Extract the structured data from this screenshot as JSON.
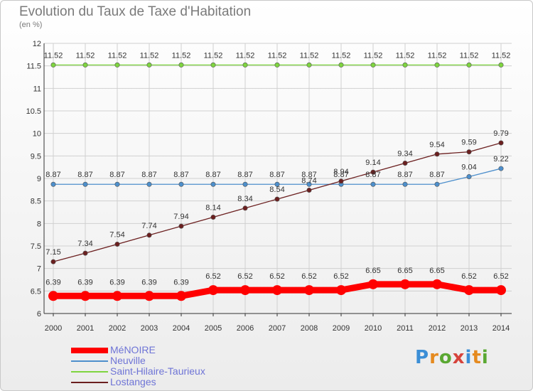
{
  "title": "Evolution du Taux de Taxe d'Habitation",
  "subtitle": "(en %)",
  "logo": {
    "text": "Proxiti",
    "colors": [
      "#3b8ed6",
      "#e58a1f",
      "#5aa832",
      "#d6433b",
      "#3b8ed6",
      "#e58a1f",
      "#5aa832"
    ]
  },
  "chart_data": {
    "type": "line",
    "title": "Evolution du Taux de Taxe d'Habitation",
    "ylabel": "(en %)",
    "xlabel": "",
    "x": [
      "2000",
      "2001",
      "2002",
      "2003",
      "2004",
      "2005",
      "2006",
      "2007",
      "2008",
      "2009",
      "2010",
      "2011",
      "2012",
      "2013",
      "2014"
    ],
    "ylim": [
      6,
      12
    ],
    "yticks": [
      "6",
      "6.5",
      "7",
      "7.5",
      "8",
      "8.5",
      "9",
      "9.5",
      "10",
      "10.5",
      "11",
      "11.5",
      "12"
    ],
    "grid": true,
    "legend_position": "bottom-left",
    "series": [
      {
        "name": "MéNOIRE",
        "color": "#ff0000",
        "values": [
          6.39,
          6.39,
          6.39,
          6.39,
          6.39,
          6.52,
          6.52,
          6.52,
          6.52,
          6.52,
          6.65,
          6.65,
          6.65,
          6.52,
          6.52
        ],
        "labels": [
          "6.39",
          "6.39",
          "6.39",
          "6.39",
          "6.39",
          "6.52",
          "6.52",
          "6.52",
          "6.52",
          "6.52",
          "6.65",
          "6.65",
          "6.65",
          "6.52",
          "6.52"
        ]
      },
      {
        "name": "Neuville",
        "color": "#4d8fcc",
        "values": [
          8.87,
          8.87,
          8.87,
          8.87,
          8.87,
          8.87,
          8.87,
          8.87,
          8.87,
          8.87,
          8.87,
          8.87,
          8.87,
          9.04,
          9.22
        ],
        "labels": [
          "8.87",
          "8.87",
          "8.87",
          "8.87",
          "8.87",
          "8.87",
          "8.87",
          "8.87",
          "8.87",
          "8.87",
          "8.87",
          "8.87",
          "8.87",
          "9.04",
          "9.22"
        ]
      },
      {
        "name": "Saint-Hilaire-Taurieux",
        "color": "#7ed53f",
        "values": [
          11.52,
          11.52,
          11.52,
          11.52,
          11.52,
          11.52,
          11.52,
          11.52,
          11.52,
          11.52,
          11.52,
          11.52,
          11.52,
          11.52,
          11.52
        ],
        "labels": [
          "11.52",
          "11.52",
          "11.52",
          "11.52",
          "11.52",
          "11.52",
          "11.52",
          "11.52",
          "11.52",
          "11.52",
          "11.52",
          "11.52",
          "11.52",
          "11.52",
          "11.52"
        ]
      },
      {
        "name": "Lostanges",
        "color": "#6b1f1f",
        "values": [
          7.15,
          7.34,
          7.54,
          7.74,
          7.94,
          8.14,
          8.34,
          8.54,
          8.74,
          8.94,
          9.14,
          9.34,
          9.54,
          9.59,
          9.79
        ],
        "labels": [
          "7.15",
          "7.34",
          "7.54",
          "7.74",
          "7.94",
          "8.14",
          "8.34",
          "8.54",
          "8.74",
          "8.94",
          "9.14",
          "9.34",
          "9.54",
          "9.59",
          "9.79"
        ]
      }
    ]
  }
}
